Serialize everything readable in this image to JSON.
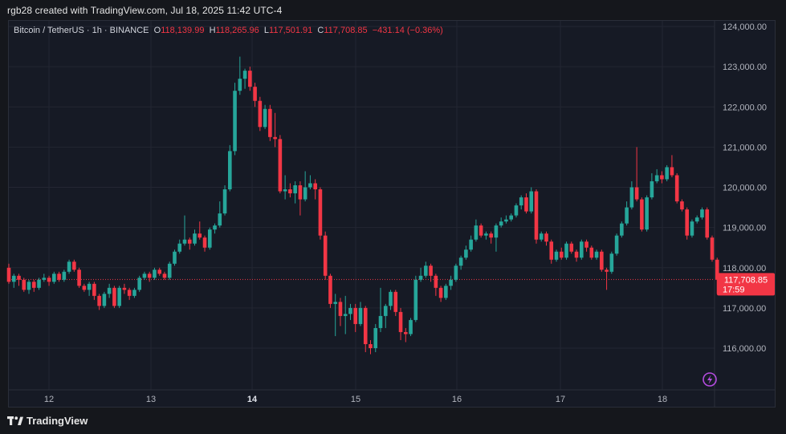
{
  "caption": "rgb28 created with TradingView.com, Jul 18, 2025 11:42 UTC-4",
  "legend": {
    "symbol": "Bitcoin / TetherUS · 1h · BINANCE",
    "o_label": "O",
    "o_value": "118,139.99",
    "h_label": "H",
    "h_value": "118,265.96",
    "l_label": "L",
    "l_value": "117,501.91",
    "c_label": "C",
    "c_value": "117,708.85",
    "change": "−431.14 (−0.36%)"
  },
  "price_tag": {
    "price": "117,708.85",
    "countdown": "17:59"
  },
  "logo_text": "TradingView",
  "colors": {
    "up": "#26a69a",
    "down": "#f23645",
    "background": "#161a25",
    "grid": "#232632",
    "text": "#b2b5be",
    "accent_icon": "#b54ce0"
  },
  "chart_data": {
    "type": "candlestick",
    "interval": "1h",
    "y_ticks": [
      "124,000.00",
      "123,000.00",
      "122,000.00",
      "121,000.00",
      "120,000.00",
      "119,000.00",
      "118,000.00",
      "117,000.00",
      "116,000.00"
    ],
    "y_tick_values": [
      124000,
      123000,
      122000,
      121000,
      120000,
      119000,
      118000,
      117000,
      116000
    ],
    "x_ticks": [
      "12",
      "13",
      "14",
      "15",
      "16",
      "17",
      "18"
    ],
    "x_tick_bold": [
      false,
      false,
      true,
      false,
      false,
      false,
      false
    ],
    "last_price": 117708.85,
    "candles": [
      [
        118000,
        117650,
        118100,
        117600
      ],
      [
        117650,
        117800,
        117850,
        117500
      ],
      [
        117800,
        117700,
        117850,
        117550
      ],
      [
        117700,
        117450,
        117750,
        117400
      ],
      [
        117450,
        117650,
        117700,
        117350
      ],
      [
        117650,
        117500,
        117700,
        117400
      ],
      [
        117500,
        117700,
        117750,
        117450
      ],
      [
        117700,
        117750,
        117850,
        117650
      ],
      [
        117750,
        117650,
        117800,
        117550
      ],
      [
        117650,
        117850,
        117900,
        117600
      ],
      [
        117850,
        117700,
        117900,
        117650
      ],
      [
        117700,
        117900,
        117950,
        117650
      ],
      [
        117900,
        118150,
        118200,
        117850
      ],
      [
        118150,
        117950,
        118200,
        117900
      ],
      [
        117950,
        117550,
        118000,
        117500
      ],
      [
        117550,
        117450,
        117600,
        117400
      ],
      [
        117450,
        117600,
        117650,
        117300
      ],
      [
        117600,
        117300,
        117650,
        117200
      ],
      [
        117300,
        117050,
        117350,
        116950
      ],
      [
        117050,
        117350,
        117400,
        117000
      ],
      [
        117350,
        117500,
        117600,
        117250
      ],
      [
        117500,
        117050,
        117550,
        117000
      ],
      [
        117050,
        117500,
        117550,
        117000
      ],
      [
        117500,
        117450,
        117600,
        117350
      ],
      [
        117450,
        117300,
        117500,
        117200
      ],
      [
        117300,
        117450,
        117500,
        117250
      ],
      [
        117450,
        117750,
        117800,
        117400
      ],
      [
        117750,
        117850,
        117900,
        117700
      ],
      [
        117850,
        117750,
        117900,
        117650
      ],
      [
        117750,
        117950,
        118000,
        117700
      ],
      [
        117950,
        117850,
        118000,
        117800
      ],
      [
        117850,
        117750,
        117900,
        117700
      ],
      [
        117750,
        118100,
        118150,
        117700
      ],
      [
        118100,
        118400,
        118450,
        118050
      ],
      [
        118400,
        118600,
        118700,
        118350
      ],
      [
        118600,
        118700,
        119300,
        118550
      ],
      [
        118700,
        118600,
        118750,
        118450
      ],
      [
        118600,
        118850,
        118950,
        118550
      ],
      [
        118850,
        118750,
        119150,
        118700
      ],
      [
        118750,
        118500,
        118800,
        118400
      ],
      [
        118500,
        118950,
        119000,
        118450
      ],
      [
        118950,
        119050,
        119100,
        118850
      ],
      [
        119050,
        119350,
        119650,
        119000
      ],
      [
        119350,
        119950,
        120050,
        119300
      ],
      [
        119950,
        120900,
        121050,
        119900
      ],
      [
        120900,
        122400,
        122600,
        120800
      ],
      [
        122400,
        122700,
        123250,
        122300
      ],
      [
        122700,
        122900,
        122950,
        122450
      ],
      [
        122900,
        122500,
        123000,
        122400
      ],
      [
        122500,
        122150,
        122600,
        122000
      ],
      [
        122150,
        121500,
        122250,
        121400
      ],
      [
        121500,
        121950,
        122050,
        121450
      ],
      [
        121950,
        121250,
        122050,
        121150
      ],
      [
        121250,
        121200,
        121850,
        121000
      ],
      [
        121200,
        119900,
        121300,
        119850
      ],
      [
        119900,
        119950,
        120300,
        119700
      ],
      [
        119950,
        119850,
        120100,
        119750
      ],
      [
        119850,
        120050,
        120150,
        119600
      ],
      [
        120050,
        119700,
        120150,
        119300
      ],
      [
        119700,
        120000,
        120400,
        119650
      ],
      [
        120000,
        120100,
        120300,
        119950
      ],
      [
        120100,
        119950,
        120200,
        119700
      ],
      [
        119950,
        118800,
        120000,
        118700
      ],
      [
        118800,
        117800,
        118900,
        117700
      ],
      [
        117800,
        117100,
        117850,
        117000
      ],
      [
        117100,
        117150,
        117350,
        116300
      ],
      [
        117150,
        116800,
        117250,
        116550
      ],
      [
        116800,
        116850,
        117300,
        116350
      ],
      [
        116850,
        117000,
        117100,
        116700
      ],
      [
        117000,
        116600,
        117100,
        116400
      ],
      [
        116600,
        117000,
        117150,
        116550
      ],
      [
        117000,
        116100,
        117050,
        115900
      ],
      [
        116100,
        116000,
        116200,
        115850
      ],
      [
        116000,
        116500,
        116600,
        115900
      ],
      [
        116500,
        116800,
        117500,
        116400
      ],
      [
        116800,
        117050,
        117100,
        116500
      ],
      [
        117050,
        117400,
        117450,
        116950
      ],
      [
        117400,
        116900,
        117450,
        116800
      ],
      [
        116900,
        116400,
        117000,
        116200
      ],
      [
        116400,
        116350,
        116500,
        116150
      ],
      [
        116350,
        116700,
        116750,
        116300
      ],
      [
        116700,
        117700,
        117800,
        116650
      ],
      [
        117700,
        117800,
        118000,
        117650
      ],
      [
        117800,
        118050,
        118150,
        117750
      ],
      [
        118050,
        117800,
        118100,
        117650
      ],
      [
        117800,
        117500,
        117850,
        117300
      ],
      [
        117500,
        117250,
        117550,
        117150
      ],
      [
        117250,
        117550,
        117600,
        117200
      ],
      [
        117550,
        117700,
        117800,
        117450
      ],
      [
        117700,
        118050,
        118100,
        117650
      ],
      [
        118050,
        118250,
        118300,
        117950
      ],
      [
        118250,
        118450,
        118550,
        118200
      ],
      [
        118450,
        118700,
        118800,
        118400
      ],
      [
        118700,
        119050,
        119200,
        118650
      ],
      [
        119050,
        118800,
        119100,
        118750
      ],
      [
        118800,
        118850,
        118900,
        118700
      ],
      [
        118850,
        118750,
        118900,
        118600
      ],
      [
        118750,
        119050,
        119100,
        118400
      ],
      [
        119050,
        119150,
        119250,
        119000
      ],
      [
        119150,
        119200,
        119300,
        119100
      ],
      [
        119200,
        119300,
        119350,
        119150
      ],
      [
        119300,
        119550,
        119600,
        119250
      ],
      [
        119550,
        119750,
        119800,
        119450
      ],
      [
        119750,
        119400,
        119850,
        119350
      ],
      [
        119400,
        119900,
        120000,
        119350
      ],
      [
        119900,
        118700,
        119950,
        118600
      ],
      [
        118700,
        118850,
        118900,
        118650
      ],
      [
        118850,
        118650,
        118900,
        118550
      ],
      [
        118650,
        118200,
        118700,
        118100
      ],
      [
        118200,
        118400,
        118450,
        118150
      ],
      [
        118400,
        118250,
        118500,
        118200
      ],
      [
        118250,
        118600,
        118650,
        118200
      ],
      [
        118600,
        118400,
        118650,
        118350
      ],
      [
        118400,
        118250,
        118450,
        118150
      ],
      [
        118250,
        118650,
        118700,
        118200
      ],
      [
        118650,
        118500,
        118700,
        118400
      ],
      [
        118500,
        118250,
        118550,
        118200
      ],
      [
        118250,
        118400,
        118450,
        118200
      ],
      [
        118400,
        117950,
        118450,
        117900
      ],
      [
        117950,
        117900,
        118000,
        117450
      ],
      [
        117900,
        118350,
        118400,
        117850
      ],
      [
        118350,
        118800,
        118850,
        118300
      ],
      [
        118800,
        119100,
        119150,
        118750
      ],
      [
        119100,
        119500,
        119650,
        119050
      ],
      [
        119500,
        120000,
        120150,
        119450
      ],
      [
        120000,
        119700,
        121000,
        119650
      ],
      [
        119700,
        118950,
        119750,
        118900
      ],
      [
        118950,
        119750,
        119800,
        118900
      ],
      [
        119750,
        120150,
        120350,
        119700
      ],
      [
        120150,
        120300,
        120450,
        120100
      ],
      [
        120300,
        120200,
        120400,
        120100
      ],
      [
        120200,
        120500,
        120550,
        120150
      ],
      [
        120500,
        120300,
        120800,
        120250
      ],
      [
        120300,
        119650,
        120350,
        119600
      ],
      [
        119650,
        119450,
        119700,
        119400
      ],
      [
        119450,
        118800,
        119500,
        118700
      ],
      [
        118800,
        119150,
        119200,
        118750
      ],
      [
        119150,
        119250,
        119300,
        119100
      ],
      [
        119250,
        119450,
        119500,
        119200
      ],
      [
        119450,
        118750,
        119500,
        118700
      ],
      [
        118750,
        118200,
        118800,
        118150
      ],
      [
        118200,
        117700,
        118250,
        117350
      ]
    ]
  }
}
